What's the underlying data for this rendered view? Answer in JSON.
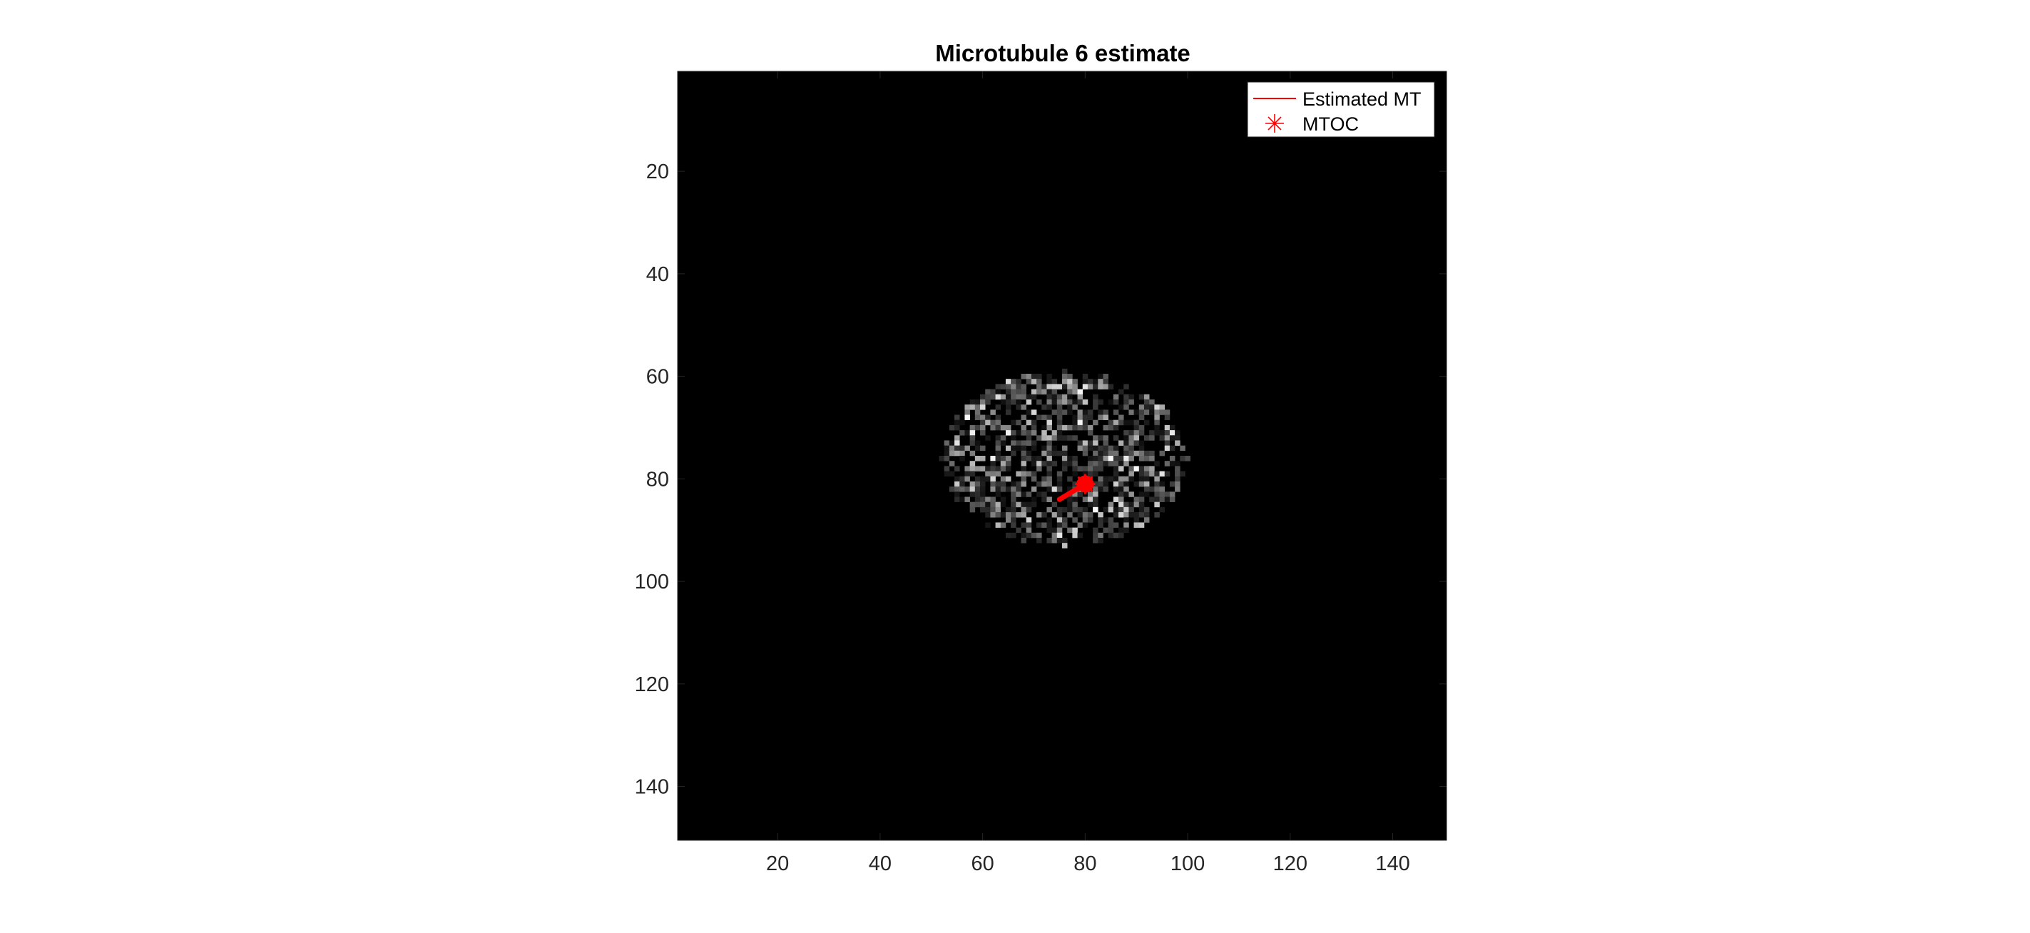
{
  "chart_data": {
    "type": "heatmap",
    "title": "Microtubule 6 estimate",
    "xlabel": "",
    "ylabel": "",
    "xlim": [
      0.5,
      150.5
    ],
    "ylim": [
      0.5,
      150.5
    ],
    "y_direction": "reverse",
    "colormap": "gray",
    "xticks": [
      20,
      40,
      60,
      80,
      100,
      120,
      140
    ],
    "yticks": [
      20,
      40,
      60,
      80,
      100,
      120,
      140
    ],
    "xtick_labels": [
      "20",
      "40",
      "60",
      "80",
      "100",
      "120",
      "140"
    ],
    "ytick_labels": [
      "20",
      "40",
      "60",
      "80",
      "100",
      "120",
      "140"
    ],
    "grid": false,
    "legend_position": "top-right",
    "image": {
      "description_values": "ellipsoidal noisy intensity blob on black background",
      "blob_center": [
        76,
        76
      ],
      "blob_radius_x": 24,
      "blob_radius_y": 17,
      "background": 0,
      "max_intensity": 1
    },
    "series": [
      {
        "name": "Estimated MT",
        "type": "line",
        "color": "#ff0000",
        "x": [
          80,
          79,
          78,
          77,
          76,
          75
        ],
        "y": [
          81,
          81.6,
          82.2,
          82.8,
          83.4,
          84
        ]
      },
      {
        "name": "MTOC",
        "type": "marker",
        "marker": "asterisk",
        "color": "#ff0000",
        "x": [
          80
        ],
        "y": [
          81
        ]
      }
    ]
  }
}
